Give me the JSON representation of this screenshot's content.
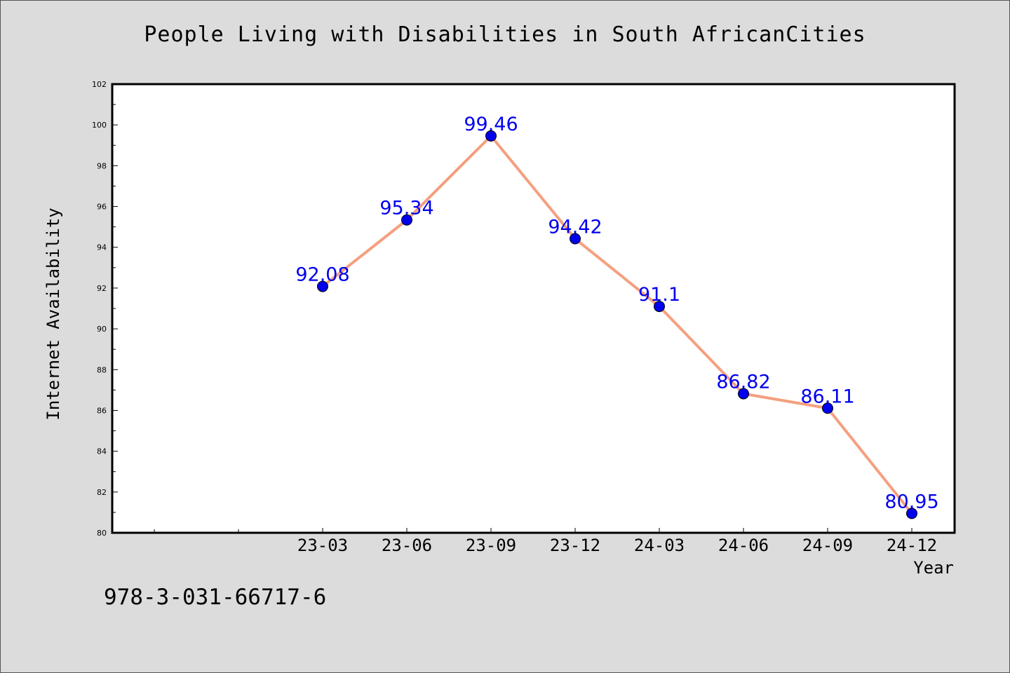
{
  "chart_data": {
    "type": "line",
    "title": "People Living with Disabilities in South AfricanCities",
    "xlabel": "Year",
    "ylabel": "Internet Availability",
    "categories": [
      "23-03",
      "23-06",
      "23-09",
      "23-12",
      "24-03",
      "24-06",
      "24-09",
      "24-12"
    ],
    "series": [
      {
        "values": [
          92.08,
          95.34,
          99.46,
          94.42,
          91.1,
          86.82,
          86.11,
          80.95
        ],
        "data_labels": [
          "92.08",
          "95.34",
          "99.46",
          "94.42",
          "91.1",
          "86.82",
          "86.11",
          "80.95"
        ]
      }
    ],
    "ylim": [
      80,
      102
    ],
    "yticks": [
      80,
      82,
      84,
      86,
      88,
      90,
      92,
      94,
      96,
      98,
      100,
      102
    ],
    "ytick_labels": [
      "80",
      "82",
      "84",
      "86",
      "88",
      "90",
      "92",
      "94",
      "96",
      "98",
      "100",
      "102"
    ],
    "grid": false,
    "colors": {
      "line": "#f4a07f",
      "marker": "#0000ee",
      "data_label": "#0000ee",
      "plot_background": "#ffffff",
      "figure_background": "#dcdcdc"
    }
  },
  "footer_text": "978-3-031-66717-6"
}
